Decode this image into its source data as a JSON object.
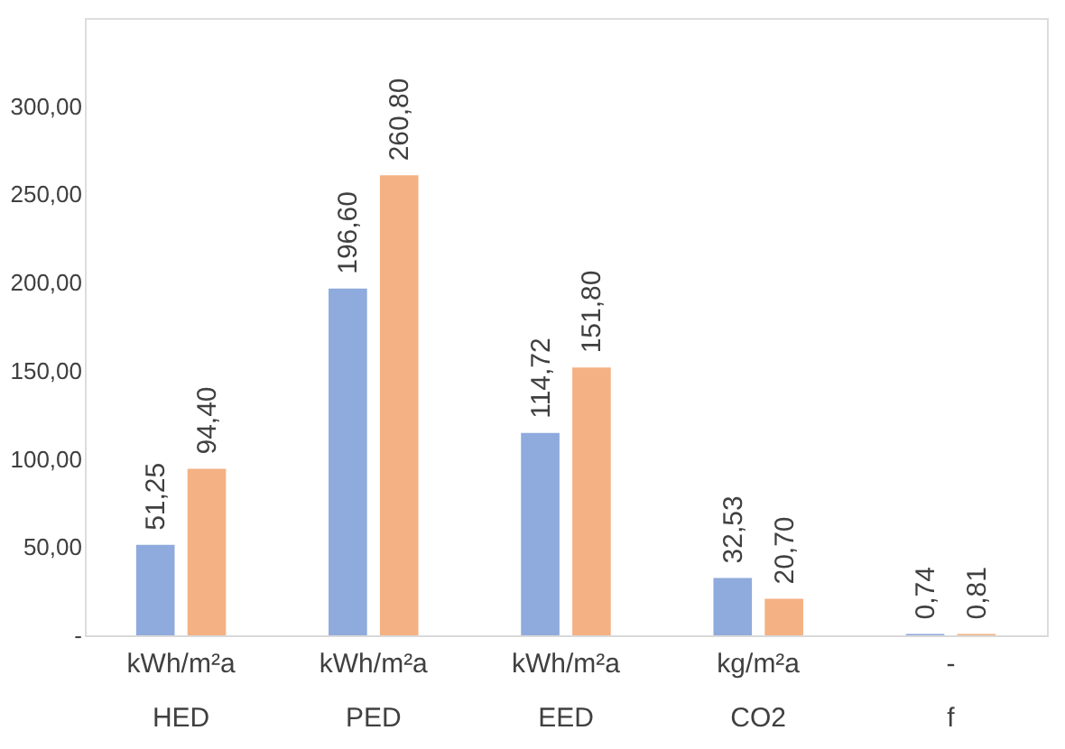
{
  "chart_data": {
    "type": "bar",
    "categories": [
      "kWh/m²a\nHED",
      "kWh/m²a\nPED",
      "kWh/m²a\nEED",
      "kg/m²a\nCO2",
      "-\nf"
    ],
    "series": [
      {
        "color": "#8faadc",
        "values": [
          51.25,
          196.6,
          114.72,
          32.53,
          0.74
        ],
        "value_labels": [
          "51,25",
          "196,60",
          "114,72",
          "32,53",
          "0,74"
        ]
      },
      {
        "color": "#f4b183",
        "values": [
          94.4,
          260.8,
          151.8,
          20.7,
          0.81
        ],
        "value_labels": [
          "94,40",
          "260,80",
          "151,80",
          "20,70",
          "0,81"
        ]
      }
    ],
    "ylim": [
      0,
      350
    ],
    "yticks": [
      {
        "value": 0,
        "label": "-"
      },
      {
        "value": 50,
        "label": "50,00"
      },
      {
        "value": 100,
        "label": "100,00"
      },
      {
        "value": 150,
        "label": "150,00"
      },
      {
        "value": 200,
        "label": "200,00"
      },
      {
        "value": 250,
        "label": "250,00"
      },
      {
        "value": 300,
        "label": "300,00"
      }
    ],
    "grid": false,
    "legend": false
  }
}
